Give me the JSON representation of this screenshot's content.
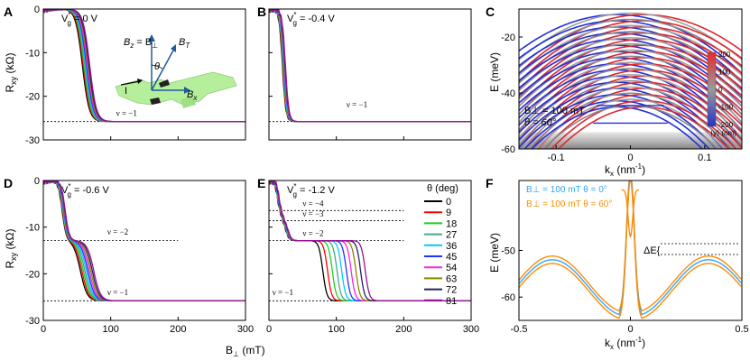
{
  "colors": {
    "theta": [
      "#000000",
      "#ff0000",
      "#22cc22",
      "#44aa88",
      "#00c8ff",
      "#2233ff",
      "#ff22dd",
      "#888800",
      "#222266",
      "#991199"
    ],
    "orange": "#ff8c00",
    "blue": "#33a6ff",
    "device": "#b6ef9c"
  },
  "chart_data": [
    {
      "panel": "A",
      "type": "line",
      "annotation": "V*g = 0 V",
      "ann_main": "V",
      "ann_sup": "*",
      "ann_sub": "g",
      "ann_rest": " = 0 V",
      "ylabel": "R",
      "ylabel_sub": "xy",
      "ylabel_unit": " (kΩ)",
      "xlim": [
        0,
        300
      ],
      "ylim": [
        -30,
        0
      ],
      "xticks": [
        0,
        100,
        200,
        300
      ],
      "yticks": [
        0,
        -10,
        -20,
        -30
      ],
      "show_xticklabels": false,
      "guides": [
        {
          "y": -25.8,
          "x0": 0,
          "x1": 300,
          "label": "ν = −1",
          "lx": 108,
          "ly": -24.5
        }
      ],
      "plateaus": [
        -25.8
      ],
      "base": [
        58
      ],
      "step": [
        1.2
      ],
      "width": [
        5
      ],
      "inset": {
        "bz": "B",
        "bz_sub": "z",
        "eq": " = B",
        "perp": "⊥",
        "bt": "B",
        "bt_sub": "T",
        "theta": "θ",
        "bx": "B",
        "bx_sub": "x",
        "current": "I"
      }
    },
    {
      "panel": "B",
      "type": "line",
      "annotation": "V*g = -0.4 V",
      "ann_main": "V",
      "ann_sup": "*",
      "ann_sub": "g",
      "ann_rest": " = -0.4 V",
      "xlim": [
        0,
        300
      ],
      "ylim": [
        -30,
        0
      ],
      "xticks": [
        0,
        100,
        200,
        300
      ],
      "yticks": [
        0,
        -10,
        -20,
        -30
      ],
      "show_xticklabels": false,
      "guides": [
        {
          "y": -25.8,
          "x0": 0,
          "x1": 300,
          "label": "ν = −1",
          "lx": 115,
          "ly": -22.6,
          "big": true
        }
      ],
      "plateaus": [
        -25.8
      ],
      "base": [
        20
      ],
      "step": [
        0.5
      ],
      "width": [
        2.5
      ]
    },
    {
      "panel": "C",
      "type": "band",
      "ylabel": "E (meV)",
      "xlabel": "k",
      "xlabel_sub": "x",
      "xlabel_unit": " (nm",
      "xlim": [
        -0.15,
        0.15
      ],
      "ylim": [
        -60,
        -10
      ],
      "xticks": [
        -0.1,
        0,
        0.1
      ],
      "yticks": [
        -20,
        -40,
        -60
      ],
      "text1": "B⊥ = 100 mT",
      "text2": "θ = 60°",
      "colorbar": {
        "ticks": [
          200,
          100,
          0,
          -100,
          -200
        ],
        "label": "⟨y⟩ (nm)"
      }
    },
    {
      "panel": "D",
      "type": "line",
      "annotation": "V*g = -0.6 V",
      "ann_main": "V",
      "ann_sup": "*",
      "ann_sub": "g",
      "ann_rest": " = -0.6 V",
      "ylabel": "R",
      "ylabel_sub": "xy",
      "ylabel_unit": " (kΩ)",
      "xlim": [
        0,
        300
      ],
      "ylim": [
        -30,
        0
      ],
      "xticks": [
        0,
        100,
        200,
        300
      ],
      "yticks": [
        0,
        -10,
        -20,
        -30
      ],
      "show_xticklabels": true,
      "guides": [
        {
          "y": -12.9,
          "x0": 0,
          "x1": 200,
          "label": "ν = −2",
          "lx": 95,
          "ly": -11.6
        },
        {
          "y": -25.8,
          "x0": 0,
          "x1": 300,
          "label": "ν = −1",
          "lx": 95,
          "ly": -24.6
        }
      ],
      "plateaus": [
        -12.9,
        -25.8
      ],
      "base": [
        28,
        55
      ],
      "step": [
        0.5,
        2.2
      ],
      "width": [
        3,
        5
      ]
    },
    {
      "panel": "E",
      "type": "line",
      "annotation": "V*g = -1.2 V",
      "ann_main": "V",
      "ann_sup": "*",
      "ann_sub": "g",
      "ann_rest": " = -1.2 V",
      "xlim": [
        0,
        300
      ],
      "ylim": [
        -30,
        0
      ],
      "xticks": [
        0,
        100,
        200,
        300
      ],
      "yticks": [
        0,
        -10,
        -20,
        -30
      ],
      "show_xticklabels": true,
      "guides": [
        {
          "y": -6.45,
          "x0": 0,
          "x1": 200,
          "label": "ν = −4",
          "lx": 50,
          "ly": -5.5
        },
        {
          "y": -8.6,
          "x0": 0,
          "x1": 200,
          "label": "ν = −3",
          "lx": 50,
          "ly": -7.7
        },
        {
          "y": -12.9,
          "x0": 0,
          "x1": 200,
          "label": "ν = −2",
          "lx": 50,
          "ly": -11.9
        },
        {
          "y": -25.8,
          "x0": 0,
          "x1": 300,
          "label": "ν = −1",
          "lx": 5,
          "ly": -24.6
        }
      ],
      "plateaus": [
        -6.45,
        -8.6,
        -12.9,
        -25.8
      ],
      "base": [
        12,
        18,
        25,
        80
      ],
      "step": [
        0.3,
        0.3,
        0.4,
        7
      ],
      "width": [
        2,
        2,
        2.5,
        3
      ],
      "legend": {
        "title": "θ (deg)",
        "entries": [
          "0",
          "9",
          "18",
          "27",
          "36",
          "45",
          "54",
          "63",
          "72",
          "81"
        ]
      }
    },
    {
      "panel": "F",
      "type": "line",
      "ylabel": "E (meV)",
      "xlabel": "k",
      "xlabel_sub": "x",
      "xlabel_unit": " (nm",
      "xlim": [
        -0.5,
        0.5
      ],
      "ylim": [
        -65,
        -35
      ],
      "xticks": [
        -0.5,
        0,
        0.5
      ],
      "yticks": [
        -50,
        -60
      ],
      "legend": [
        "B⊥ = 100 mT  θ = 0°",
        "B⊥ = 100 mT  θ = 60°"
      ],
      "gap_label": "ΔE{"
    }
  ],
  "shared": {
    "xlabel_main": "B",
    "xlabel_sub": "⊥",
    "xlabel_unit": " (mT)",
    "sup_minus1": "-1",
    "close_paren": ")"
  }
}
